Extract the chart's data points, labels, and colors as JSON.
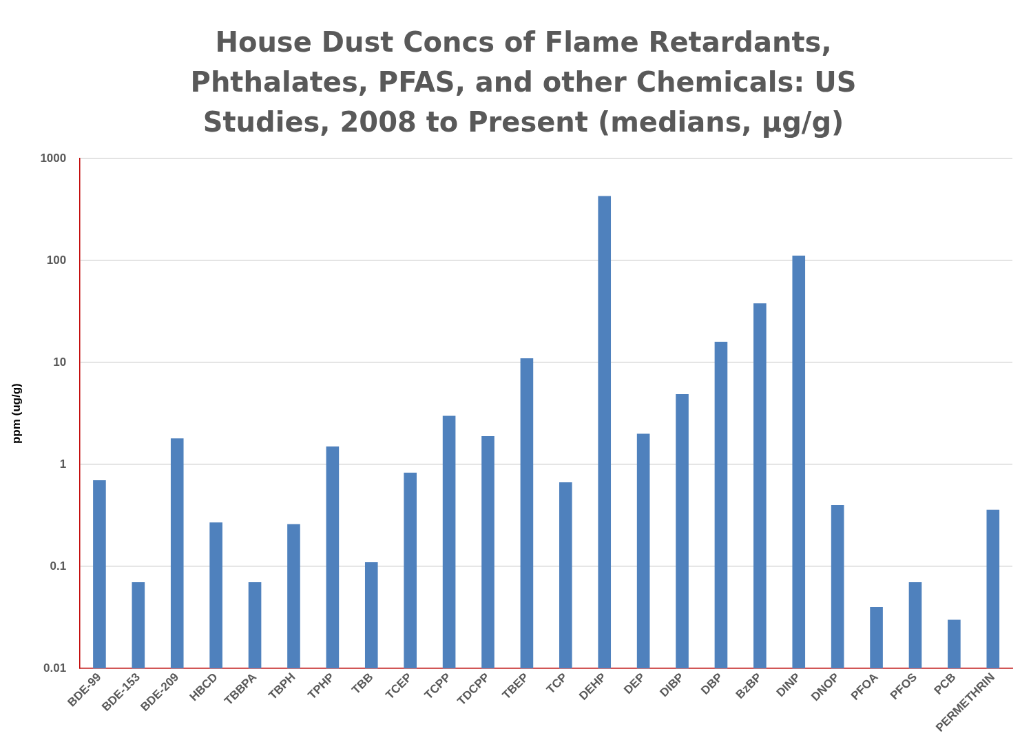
{
  "chart_data": {
    "type": "bar",
    "title": "House Dust Concs of Flame Retardants, Phthalates, PFAS, and other Chemicals: US Studies, 2008 to Present (medians, µg/g)",
    "ylabel": "ppm (ug/g)",
    "categories": [
      "BDE-99",
      "BDE-153",
      "BDE-209",
      "HBCD",
      "TBBPA",
      "TBPH",
      "TPHP",
      "TBB",
      "TCEP",
      "TCPP",
      "TDCPP",
      "TBEP",
      "TCP",
      "DEHP",
      "DEP",
      "DIBP",
      "DBP",
      "BzBP",
      "DINP",
      "DNOP",
      "PFOA",
      "PFOS",
      "PCB",
      "PERMETHRIN"
    ],
    "values": [
      0.7,
      0.07,
      1.8,
      0.27,
      0.07,
      0.26,
      1.5,
      0.11,
      0.83,
      3,
      1.9,
      11,
      0.67,
      430,
      2,
      4.9,
      16,
      38,
      112,
      0.4,
      0.04,
      0.07,
      0.03,
      0.36
    ],
    "color": "#4f81bd",
    "log": "y",
    "ylim": [
      0.01,
      1000
    ],
    "yticks": [
      0.01,
      0.1,
      1,
      10,
      100,
      1000
    ],
    "grid": "y",
    "legend": false
  }
}
